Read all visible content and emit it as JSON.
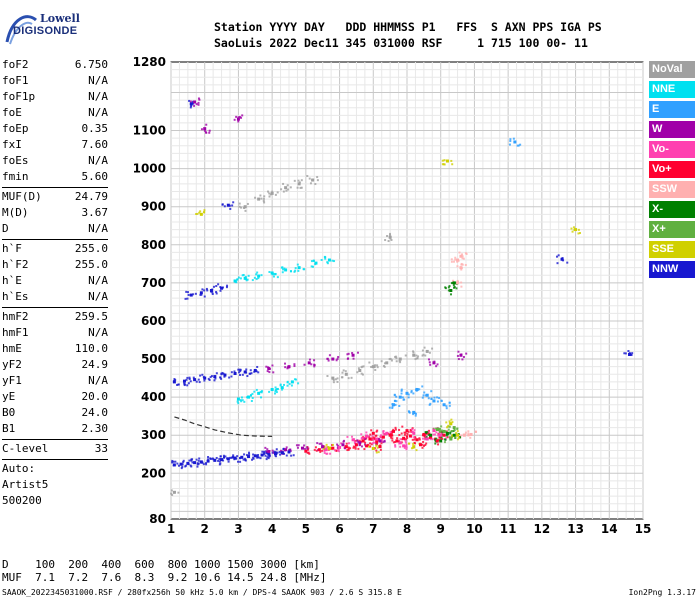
{
  "logo": {
    "line1": "Lowell",
    "line2": "DIGISONDE"
  },
  "header": {
    "labels": "Station YYYY DAY   DDD HHMMSS P1   FFS  S AXN PPS IGA PS",
    "values": "SaoLuis 2022 Dec11 345 031000 RSF     1 715 100 00- 11"
  },
  "params": [
    {
      "name": "foF2",
      "value": "6.750"
    },
    {
      "name": "foF1",
      "value": "N/A"
    },
    {
      "name": "foF1p",
      "value": "N/A"
    },
    {
      "name": "foE",
      "value": "N/A"
    },
    {
      "name": "foEp",
      "value": "0.35"
    },
    {
      "name": "fxI",
      "value": "7.60"
    },
    {
      "name": "foEs",
      "value": "N/A"
    },
    {
      "name": "fmin",
      "value": "5.60"
    },
    {
      "sep": true
    },
    {
      "name": "MUF(D)",
      "value": "24.79"
    },
    {
      "name": "M(D)",
      "value": "3.67"
    },
    {
      "name": "D",
      "value": "N/A"
    },
    {
      "sep": true
    },
    {
      "name": "h`F",
      "value": "255.0"
    },
    {
      "name": "h`F2",
      "value": "255.0"
    },
    {
      "name": "h`E",
      "value": "N/A"
    },
    {
      "name": "h`Es",
      "value": "N/A"
    },
    {
      "sep": true
    },
    {
      "name": "hmF2",
      "value": "259.5"
    },
    {
      "name": "hmF1",
      "value": "N/A"
    },
    {
      "name": "hmE",
      "value": "110.0"
    },
    {
      "name": "yF2",
      "value": "24.9"
    },
    {
      "name": "yF1",
      "value": "N/A"
    },
    {
      "name": "yE",
      "value": "20.0"
    },
    {
      "name": "B0",
      "value": "24.0"
    },
    {
      "name": "B1",
      "value": "2.30"
    },
    {
      "sep": true
    },
    {
      "name": "C-level",
      "value": "33"
    },
    {
      "sep": true
    }
  ],
  "notes": [
    "Auto:",
    "Artist5",
    "500200"
  ],
  "legend": [
    {
      "label": "NoVal",
      "color": "#a0a0a0"
    },
    {
      "label": "NNE",
      "color": "#00e0f0"
    },
    {
      "label": "E",
      "color": "#30a0ff"
    },
    {
      "label": "W",
      "color": "#a000a8"
    },
    {
      "label": "Vo-",
      "color": "#ff40b0"
    },
    {
      "label": "Vo+",
      "color": "#ff0030"
    },
    {
      "label": "SSW",
      "color": "#ffb0b0"
    },
    {
      "label": "X-",
      "color": "#008000"
    },
    {
      "label": "X+",
      "color": "#60b040"
    },
    {
      "label": "SSE",
      "color": "#d0d000"
    },
    {
      "label": "NNW",
      "color": "#1818d0"
    }
  ],
  "footer": {
    "d_line": "D    100  200  400  600  800 1000 1500 3000 [km]",
    "muf_line": "MUF  7.1  7.2  7.6  8.3  9.2 10.6 14.5 24.8 [MHz]",
    "bottom_line": "SAAOK_2022345031000.RSF / 280fx256h 50 kHz 5.0 km / DPS-4 SAAOK 903 / 2.6 S 315.8 E",
    "version": "Ion2Png 1.3.17"
  },
  "chart_data": {
    "type": "scatter",
    "title": "",
    "xlabel": "",
    "ylabel": "",
    "xlim": [
      1,
      15
    ],
    "ylim": [
      80,
      1280
    ],
    "x_ticks": [
      1,
      2,
      3,
      4,
      5,
      6,
      7,
      8,
      9,
      10,
      11,
      12,
      13,
      14,
      15
    ],
    "y_ticks": [
      80,
      200,
      300,
      400,
      500,
      600,
      700,
      800,
      900,
      1000,
      1100,
      1280
    ],
    "grid": true,
    "legend_placement": "right",
    "series": [
      {
        "name": "Vo+",
        "points": [
          [
            5.0,
            258
          ],
          [
            5.4,
            262
          ],
          [
            5.8,
            266
          ],
          [
            6.2,
            270
          ],
          [
            6.5,
            275
          ],
          [
            6.7,
            285
          ],
          [
            6.9,
            290
          ],
          [
            7.1,
            282
          ],
          [
            7.3,
            295
          ],
          [
            7.5,
            300
          ],
          [
            7.7,
            285
          ],
          [
            7.9,
            292
          ],
          [
            8.1,
            298
          ],
          [
            8.3,
            288
          ],
          [
            8.5,
            302
          ],
          [
            8.7,
            295
          ],
          [
            8.9,
            285
          ],
          [
            9.1,
            300
          ],
          [
            7.0,
            305
          ],
          [
            7.2,
            270
          ],
          [
            6.8,
            272
          ],
          [
            7.6,
            310
          ],
          [
            8.0,
            312
          ],
          [
            8.4,
            275
          ]
        ]
      },
      {
        "name": "Vo-",
        "points": [
          [
            6.0,
            268
          ],
          [
            6.4,
            288
          ],
          [
            6.8,
            298
          ],
          [
            7.4,
            305
          ],
          [
            7.8,
            280
          ],
          [
            8.2,
            305
          ],
          [
            8.6,
            290
          ],
          [
            9.0,
            300
          ],
          [
            7.1,
            290
          ],
          [
            7.9,
            272
          ],
          [
            8.8,
            312
          ],
          [
            5.6,
            262
          ]
        ]
      },
      {
        "name": "NNW",
        "points": [
          [
            1.1,
            222
          ],
          [
            1.3,
            224
          ],
          [
            1.5,
            226
          ],
          [
            1.7,
            228
          ],
          [
            1.9,
            230
          ],
          [
            2.1,
            232
          ],
          [
            2.3,
            234
          ],
          [
            2.5,
            236
          ],
          [
            2.7,
            238
          ],
          [
            2.9,
            240
          ],
          [
            3.1,
            242
          ],
          [
            3.3,
            244
          ],
          [
            3.5,
            246
          ],
          [
            3.7,
            248
          ],
          [
            3.9,
            250
          ],
          [
            4.1,
            252
          ],
          [
            4.3,
            254
          ],
          [
            4.5,
            256
          ],
          [
            1.1,
            440
          ],
          [
            1.4,
            442
          ],
          [
            1.7,
            446
          ],
          [
            2.0,
            450
          ],
          [
            2.3,
            454
          ],
          [
            2.6,
            458
          ],
          [
            2.9,
            462
          ],
          [
            3.2,
            466
          ],
          [
            3.5,
            470
          ],
          [
            1.6,
            668
          ],
          [
            1.9,
            674
          ],
          [
            2.2,
            680
          ],
          [
            2.5,
            686
          ],
          [
            12.6,
            762
          ],
          [
            14.6,
            512
          ],
          [
            2.7,
            904
          ],
          [
            1.6,
            1170
          ]
        ]
      },
      {
        "name": "W",
        "points": [
          [
            3.9,
            257
          ],
          [
            4.4,
            262
          ],
          [
            4.9,
            266
          ],
          [
            5.5,
            270
          ],
          [
            6.1,
            275
          ],
          [
            6.6,
            280
          ],
          [
            7.2,
            285
          ],
          [
            3.9,
            475
          ],
          [
            4.5,
            480
          ],
          [
            5.1,
            490
          ],
          [
            5.8,
            500
          ],
          [
            6.4,
            510
          ],
          [
            9.6,
            510
          ],
          [
            8.8,
            490
          ],
          [
            2.0,
            1105
          ],
          [
            3.0,
            1130
          ],
          [
            1.7,
            1175
          ]
        ]
      },
      {
        "name": "E",
        "points": [
          [
            7.8,
            400
          ],
          [
            8.0,
            410
          ],
          [
            8.3,
            420
          ],
          [
            8.6,
            405
          ],
          [
            8.8,
            390
          ],
          [
            9.1,
            380
          ],
          [
            8.2,
            360
          ],
          [
            7.6,
            380
          ],
          [
            11.2,
            1070
          ]
        ]
      },
      {
        "name": "NNE",
        "points": [
          [
            3.0,
            395
          ],
          [
            3.3,
            400
          ],
          [
            3.6,
            410
          ],
          [
            4.0,
            420
          ],
          [
            4.3,
            425
          ],
          [
            4.6,
            440
          ],
          [
            2.9,
            705
          ],
          [
            3.2,
            712
          ],
          [
            3.6,
            718
          ],
          [
            4.0,
            726
          ],
          [
            4.4,
            734
          ],
          [
            4.8,
            740
          ],
          [
            5.3,
            752
          ],
          [
            5.7,
            760
          ]
        ]
      },
      {
        "name": "NoVal",
        "points": [
          [
            5.8,
            450
          ],
          [
            6.2,
            460
          ],
          [
            6.6,
            470
          ],
          [
            7.0,
            480
          ],
          [
            7.4,
            490
          ],
          [
            7.8,
            500
          ],
          [
            8.2,
            510
          ],
          [
            8.6,
            520
          ],
          [
            3.2,
            900
          ],
          [
            3.6,
            920
          ],
          [
            4.0,
            935
          ],
          [
            4.4,
            950
          ],
          [
            4.8,
            960
          ],
          [
            5.2,
            970
          ],
          [
            7.5,
            820
          ],
          [
            1.1,
            150
          ]
        ]
      },
      {
        "name": "SSW",
        "points": [
          [
            9.5,
            760
          ],
          [
            9.6,
            770
          ],
          [
            9.6,
            740
          ],
          [
            9.5,
            700
          ],
          [
            9.7,
            300
          ],
          [
            9.9,
            302
          ]
        ]
      },
      {
        "name": "X-",
        "points": [
          [
            9.3,
            680
          ],
          [
            9.4,
            700
          ],
          [
            9.2,
            305
          ],
          [
            9.4,
            300
          ],
          [
            9.0,
            285
          ],
          [
            8.7,
            300
          ]
        ]
      },
      {
        "name": "X+",
        "points": [
          [
            9.1,
            310
          ],
          [
            9.3,
            290
          ],
          [
            8.9,
            315
          ],
          [
            9.4,
            320
          ]
        ]
      },
      {
        "name": "SSE",
        "points": [
          [
            9.2,
            1020
          ],
          [
            13.0,
            840
          ],
          [
            8.2,
            270
          ],
          [
            7.0,
            265
          ],
          [
            9.3,
            330
          ],
          [
            9.5,
            300
          ],
          [
            5.7,
            265
          ],
          [
            1.9,
            880
          ]
        ]
      }
    ],
    "trace": {
      "points": [
        [
          1.1,
          348
        ],
        [
          1.4,
          340
        ],
        [
          1.7,
          330
        ],
        [
          2.0,
          322
        ],
        [
          2.3,
          314
        ],
        [
          2.7,
          306
        ],
        [
          3.1,
          300
        ],
        [
          3.5,
          298
        ],
        [
          4.0,
          297
        ]
      ]
    }
  }
}
